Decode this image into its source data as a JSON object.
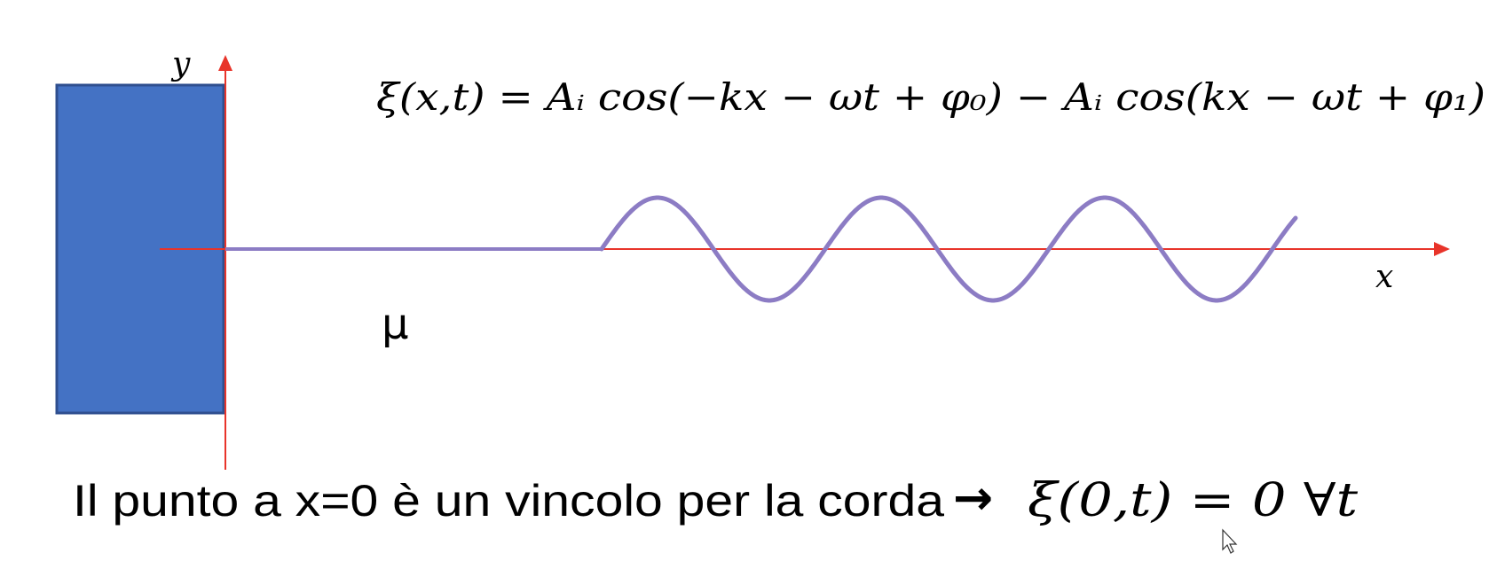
{
  "slide": {
    "equation": "ξ(x,t) = Aᵢ cos(−kx − ωt + φ₀) − Aᵢ cos(kx − ωt + φ₁)",
    "axis_y_label": "y",
    "axis_x_label": "x",
    "density_label": "μ",
    "caption_text": "Il punto a  x=0 è un vincolo per la corda",
    "caption_arrow": "→",
    "caption_math": "ξ(0,t) = 0  ∀t"
  },
  "colors": {
    "wall_fill": "#4472c4",
    "wall_border": "#2f4f8f",
    "axis": "#e8342a",
    "string": "#8c7cc4",
    "text": "#000000"
  }
}
